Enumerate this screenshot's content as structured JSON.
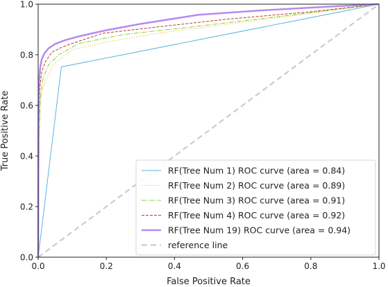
{
  "chart_data": {
    "type": "line",
    "title": "",
    "xlabel": "False Positive Rate",
    "ylabel": "True Positive Rate",
    "xlim": [
      0.0,
      1.0
    ],
    "ylim": [
      0.0,
      1.0
    ],
    "xticks": [
      "0.0",
      "0.2",
      "0.4",
      "0.6",
      "0.8",
      "1.0"
    ],
    "yticks": [
      "0.0",
      "0.2",
      "0.4",
      "0.6",
      "0.8",
      "1.0"
    ],
    "grid": false,
    "legend_position": "lower-right",
    "series": [
      {
        "name": "RF(Tree Num 1) ROC curve (area = 0.84)",
        "color": "#5ab4e0",
        "style": "solid",
        "x": [
          0.0,
          0.068,
          1.0
        ],
        "y": [
          0.0,
          0.752,
          1.0
        ]
      },
      {
        "name": "RF(Tree Num 2) ROC curve (area = 0.89)",
        "color": "#f5b342",
        "style": "dotted",
        "x": [
          0.0,
          0.003,
          0.006,
          0.012,
          0.022,
          0.045,
          0.1,
          0.2,
          0.35,
          0.55,
          0.75,
          1.0
        ],
        "y": [
          0.0,
          0.45,
          0.6,
          0.66,
          0.7,
          0.76,
          0.82,
          0.85,
          0.885,
          0.92,
          0.955,
          1.0
        ]
      },
      {
        "name": "RF(Tree Num 3) ROC curve (area = 0.91)",
        "color": "#7ed321",
        "style": "dashdot",
        "x": [
          0.0,
          0.003,
          0.007,
          0.015,
          0.03,
          0.06,
          0.12,
          0.25,
          0.45,
          0.7,
          1.0
        ],
        "y": [
          0.0,
          0.5,
          0.64,
          0.71,
          0.76,
          0.8,
          0.845,
          0.88,
          0.91,
          0.95,
          1.0
        ]
      },
      {
        "name": "RF(Tree Num 4) ROC curve (area = 0.92)",
        "color": "#c0392b",
        "style": "dashed",
        "x": [
          0.0,
          0.002,
          0.005,
          0.01,
          0.02,
          0.04,
          0.07,
          0.1,
          0.19,
          0.35,
          0.55,
          0.8,
          1.0
        ],
        "y": [
          0.0,
          0.55,
          0.67,
          0.73,
          0.77,
          0.81,
          0.83,
          0.845,
          0.885,
          0.91,
          0.94,
          0.97,
          1.0
        ]
      },
      {
        "name": "RF(Tree Num 19) ROC curve (area = 0.94)",
        "color": "#b38bf0",
        "style": "solid-thick",
        "x": [
          0.0,
          0.001,
          0.003,
          0.006,
          0.01,
          0.018,
          0.03,
          0.05,
          0.08,
          0.12,
          0.2,
          0.3,
          0.47,
          0.65,
          0.85,
          1.0
        ],
        "y": [
          0.0,
          0.6,
          0.7,
          0.75,
          0.78,
          0.805,
          0.825,
          0.843,
          0.858,
          0.873,
          0.897,
          0.922,
          0.958,
          0.975,
          0.99,
          1.0
        ]
      },
      {
        "name": "reference line",
        "color": "#cccccc",
        "style": "dashed-thick",
        "x": [
          0.0,
          1.0
        ],
        "y": [
          0.0,
          1.0
        ]
      }
    ]
  }
}
